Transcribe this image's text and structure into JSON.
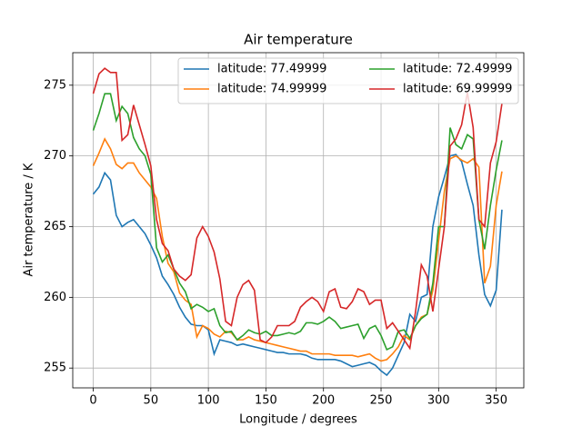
{
  "chart_data": {
    "type": "line",
    "title": "Air temperature",
    "x_label": "Longitude / degrees",
    "y_label": "Air temperature / K",
    "x": [
      0,
      5,
      10,
      15,
      20,
      25,
      30,
      35,
      40,
      45,
      50,
      55,
      60,
      65,
      70,
      75,
      80,
      85,
      90,
      95,
      100,
      105,
      110,
      115,
      120,
      125,
      130,
      135,
      140,
      145,
      150,
      155,
      160,
      165,
      170,
      175,
      180,
      185,
      190,
      195,
      200,
      205,
      210,
      215,
      220,
      225,
      230,
      235,
      240,
      245,
      250,
      255,
      260,
      265,
      270,
      275,
      280,
      285,
      290,
      295,
      300,
      305,
      310,
      315,
      320,
      325,
      330,
      335,
      340,
      345,
      350,
      355
    ],
    "series": [
      {
        "name": "latitude: 77.49999",
        "color": "#1f77b4",
        "values": [
          267.3,
          267.8,
          268.8,
          268.3,
          265.8,
          265.0,
          265.3,
          265.5,
          265.0,
          264.5,
          263.7,
          262.8,
          261.5,
          260.9,
          260.2,
          259.3,
          258.6,
          258.1,
          258.0,
          258.0,
          257.7,
          256.0,
          257.0,
          256.9,
          256.8,
          256.6,
          256.7,
          256.6,
          256.5,
          256.4,
          256.3,
          256.2,
          256.1,
          256.1,
          256.0,
          256.0,
          256.0,
          255.9,
          255.7,
          255.6,
          255.6,
          255.6,
          255.6,
          255.5,
          255.3,
          255.1,
          255.2,
          255.3,
          255.4,
          255.2,
          254.8,
          254.5,
          255.0,
          255.9,
          256.8,
          258.8,
          258.3,
          260.0,
          260.2,
          265.0,
          267.1,
          268.5,
          270.0,
          270.1,
          269.6,
          268.0,
          266.5,
          263.0,
          260.2,
          259.4,
          260.5,
          266.2
        ]
      },
      {
        "name": "latitude: 74.99999",
        "color": "#ff7f0e",
        "values": [
          269.3,
          270.2,
          271.2,
          270.5,
          269.4,
          269.1,
          269.5,
          269.5,
          268.8,
          268.3,
          267.8,
          267.0,
          264.3,
          262.4,
          261.8,
          260.3,
          259.8,
          259.5,
          257.2,
          258.0,
          257.8,
          257.4,
          257.2,
          257.6,
          257.5,
          257.0,
          257.0,
          257.2,
          257.0,
          256.9,
          256.8,
          256.7,
          256.6,
          256.5,
          256.4,
          256.3,
          256.2,
          256.2,
          256.0,
          256.0,
          256.0,
          256.0,
          255.9,
          255.9,
          255.9,
          255.9,
          255.8,
          255.9,
          256.0,
          255.7,
          255.5,
          255.6,
          256.0,
          256.5,
          257.3,
          257.0,
          258.0,
          258.6,
          258.8,
          260.5,
          264.0,
          267.5,
          269.8,
          270.0,
          269.7,
          269.5,
          269.8,
          269.2,
          261.0,
          262.2,
          266.5,
          268.9
        ]
      },
      {
        "name": "latitude: 72.49999",
        "color": "#2ca02c",
        "values": [
          271.8,
          273.0,
          274.4,
          274.4,
          272.5,
          273.5,
          273.0,
          271.3,
          270.5,
          270.0,
          268.7,
          263.5,
          262.5,
          263.0,
          262.0,
          261.0,
          260.4,
          259.2,
          259.5,
          259.3,
          259.0,
          259.2,
          258.0,
          257.5,
          257.6,
          257.0,
          257.3,
          257.7,
          257.5,
          257.4,
          257.6,
          257.3,
          257.3,
          257.4,
          257.5,
          257.4,
          257.6,
          258.2,
          258.2,
          258.1,
          258.3,
          258.6,
          258.3,
          257.8,
          257.9,
          258.0,
          258.1,
          257.1,
          257.8,
          258.0,
          257.3,
          256.3,
          256.5,
          257.6,
          257.7,
          257.1,
          258.0,
          258.5,
          258.8,
          261.0,
          265.0,
          265.0,
          272.0,
          270.8,
          270.5,
          271.5,
          271.2,
          265.5,
          263.4,
          266.5,
          269.0,
          271.1
        ]
      },
      {
        "name": "latitude: 69.99999",
        "color": "#d62728",
        "values": [
          274.4,
          275.8,
          276.2,
          275.9,
          275.9,
          271.1,
          271.5,
          273.6,
          272.2,
          270.8,
          269.3,
          265.5,
          263.8,
          263.3,
          262.0,
          261.5,
          261.2,
          261.6,
          264.2,
          265.0,
          264.3,
          263.2,
          261.3,
          258.3,
          258.0,
          260.0,
          260.9,
          261.2,
          260.5,
          257.0,
          256.8,
          257.2,
          258.0,
          258.0,
          258.0,
          258.3,
          259.3,
          259.7,
          260.0,
          259.7,
          259.0,
          260.4,
          260.6,
          259.3,
          259.2,
          259.7,
          260.6,
          260.4,
          259.5,
          259.8,
          259.8,
          257.8,
          258.2,
          257.6,
          257.0,
          256.4,
          259.0,
          262.3,
          261.5,
          259.0,
          262.0,
          265.0,
          270.7,
          271.2,
          272.2,
          274.5,
          272.0,
          265.5,
          265.0,
          269.5,
          271.0,
          273.7
        ]
      }
    ],
    "xlim": [
      -17.8,
      374
    ],
    "ylim": [
      253.6,
      277.3
    ],
    "xticks": [
      0,
      50,
      100,
      150,
      200,
      250,
      300,
      350
    ],
    "yticks": [
      255,
      260,
      265,
      270,
      275
    ],
    "grid": true,
    "legend": "upper right"
  }
}
